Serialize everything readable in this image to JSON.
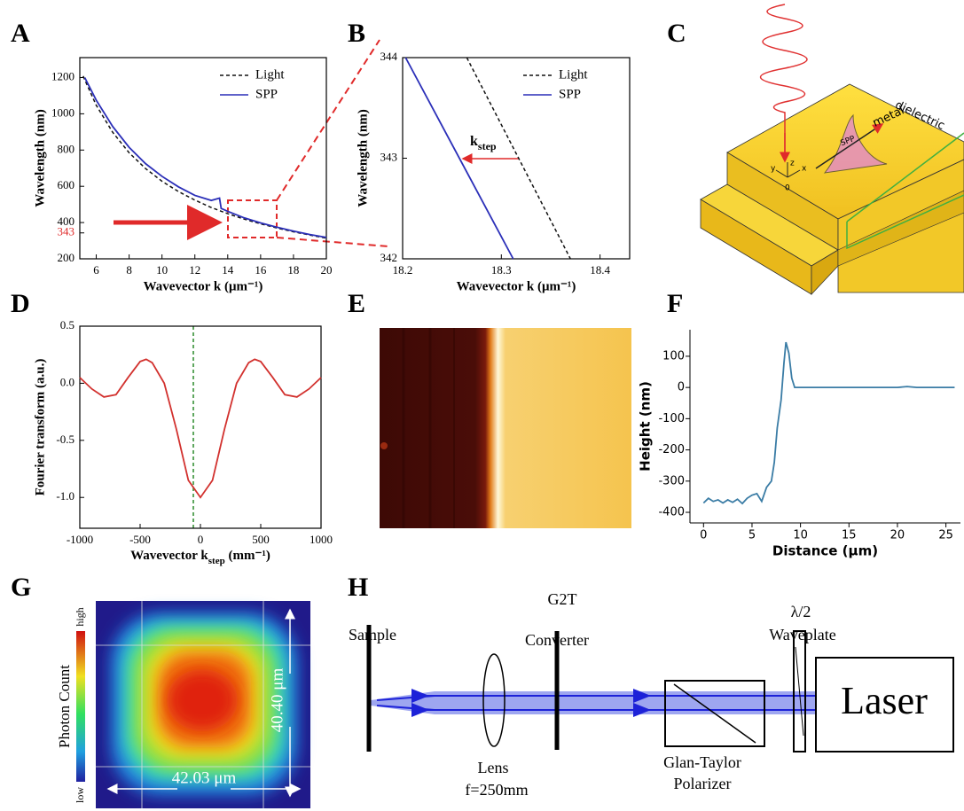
{
  "chart_data": [
    {
      "type": "line",
      "xlabel": "Wavevector k (μm⁻¹)",
      "ylabel": "Wavelength (nm)",
      "xlim": [
        5,
        20
      ],
      "ylim": [
        200,
        1310
      ],
      "xticks": [
        6,
        8,
        10,
        12,
        14,
        16,
        18,
        20
      ],
      "yticks": [
        200,
        400,
        600,
        800,
        1000,
        1200
      ],
      "extra_ytick": {
        "value": 343,
        "label": "343",
        "color": "#e02a2a"
      },
      "legend": "upper right",
      "series": [
        {
          "name": "Light",
          "color": "#111111",
          "dash": true,
          "x": [
            5.2,
            6,
            7,
            8,
            9,
            10,
            11,
            12,
            13,
            14,
            15,
            16,
            17,
            18,
            19,
            20
          ],
          "values": [
            1208,
            1047,
            898,
            785,
            698,
            628,
            571,
            524,
            483,
            449,
            419,
            393,
            370,
            349,
            331,
            314
          ]
        },
        {
          "name": "SPP",
          "color": "#2b2fb8",
          "dash": false,
          "x": [
            5.3,
            6,
            7,
            8,
            9,
            10,
            11,
            12,
            13,
            13.5,
            13.6,
            14,
            15,
            16,
            17,
            18,
            19,
            20
          ],
          "values": [
            1200,
            1075,
            930,
            815,
            725,
            655,
            597,
            550,
            522,
            535,
            478,
            462,
            426,
            398,
            374,
            353,
            334,
            318
          ]
        }
      ]
    },
    {
      "type": "line",
      "xlabel": "Wavevector k (μm⁻¹)",
      "ylabel": "Wavelength (nm)",
      "xlim": [
        18.2,
        18.43
      ],
      "ylim": [
        342,
        344
      ],
      "xticks": [
        18.2,
        18.3,
        18.4
      ],
      "yticks": [
        342,
        343,
        344
      ],
      "legend": "upper right",
      "annotation": [
        "k",
        "step"
      ],
      "series": [
        {
          "name": "Light",
          "color": "#111111",
          "dash": true,
          "x": [
            18.265,
            18.37
          ],
          "values": [
            344,
            342
          ]
        },
        {
          "name": "SPP",
          "color": "#2b2fb8",
          "dash": false,
          "x": [
            18.203,
            18.312
          ],
          "values": [
            344,
            342
          ]
        }
      ]
    },
    {
      "type": "line",
      "xlabel": [
        "Wavevector k",
        "step",
        " (mm⁻¹)"
      ],
      "ylabel": "Fourier transform (a.u.)",
      "xlim": [
        -1000,
        1000
      ],
      "ylim": [
        -1.27,
        0.5
      ],
      "xticks": [
        -1000,
        -500,
        0,
        500,
        1000
      ],
      "yticks": [
        0.5,
        {
          "value": 0,
          "label": "0.0"
        },
        -0.5,
        {
          "value": -1,
          "label": "-1.0"
        }
      ],
      "series": [
        {
          "color": "#d2312e",
          "dash": false,
          "x": [
            -1000,
            -900,
            -800,
            -700,
            -600,
            -500,
            -450,
            -400,
            -300,
            -200,
            -100,
            0,
            100,
            200,
            300,
            400,
            450,
            500,
            600,
            700,
            800,
            900,
            1000
          ],
          "values": [
            0.05,
            -0.05,
            -0.12,
            -0.1,
            0.05,
            0.19,
            0.21,
            0.18,
            0,
            -0.4,
            -0.85,
            -1.0,
            -0.85,
            -0.4,
            0,
            0.18,
            0.21,
            0.19,
            0.05,
            -0.1,
            -0.12,
            -0.05,
            0.05
          ]
        }
      ]
    },
    {
      "type": "line",
      "xlabel": "Distance (μm)",
      "ylabel": "Height (nm)",
      "xlim": [
        -1.4,
        26.5
      ],
      "ylim": [
        -434,
        185
      ],
      "xticks": [
        0,
        5,
        10,
        15,
        20,
        25
      ],
      "yticks": [
        100,
        0,
        -100,
        -200,
        -300,
        -400
      ],
      "series": [
        {
          "color": "#3a7ca5",
          "dash": false,
          "x": [
            0,
            0.5,
            1,
            1.5,
            2,
            2.5,
            3,
            3.5,
            4,
            4.5,
            5,
            5.5,
            6,
            6.5,
            7,
            7.3,
            7.6,
            8,
            8.3,
            8.5,
            8.8,
            9.1,
            9.4,
            10,
            15,
            20,
            21,
            22,
            25.9
          ],
          "values": [
            -370,
            -355,
            -365,
            -360,
            -370,
            -360,
            -368,
            -358,
            -372,
            -355,
            -345,
            -340,
            -365,
            -320,
            -300,
            -240,
            -130,
            -40,
            80,
            145,
            110,
            30,
            0,
            0,
            0,
            0,
            3,
            0,
            0
          ]
        }
      ]
    }
  ],
  "panels": [
    "A",
    "B",
    "C",
    "D",
    "E",
    "F",
    "G",
    "H"
  ],
  "diagram_c": {
    "dielectric": "dielectric",
    "metal": "metal",
    "spp": "SPP",
    "x": "x",
    "y": "y",
    "z": "z",
    "origin": "0"
  },
  "image_g": {
    "high": "high",
    "low": "low",
    "colorbar_title": "Photon Count",
    "width": "42.03 μm",
    "height": "40.40 μm"
  },
  "diagram_h": {
    "sample": "Sample",
    "g2t": "G2T",
    "converter": "Converter",
    "half_wave": "λ/2",
    "waveplate": "Waveplate",
    "laser": "Laser",
    "lens": "Lens",
    "focal": "f=250mm",
    "glan_taylor": "Glan-Taylor",
    "polarizer": "Polarizer"
  }
}
